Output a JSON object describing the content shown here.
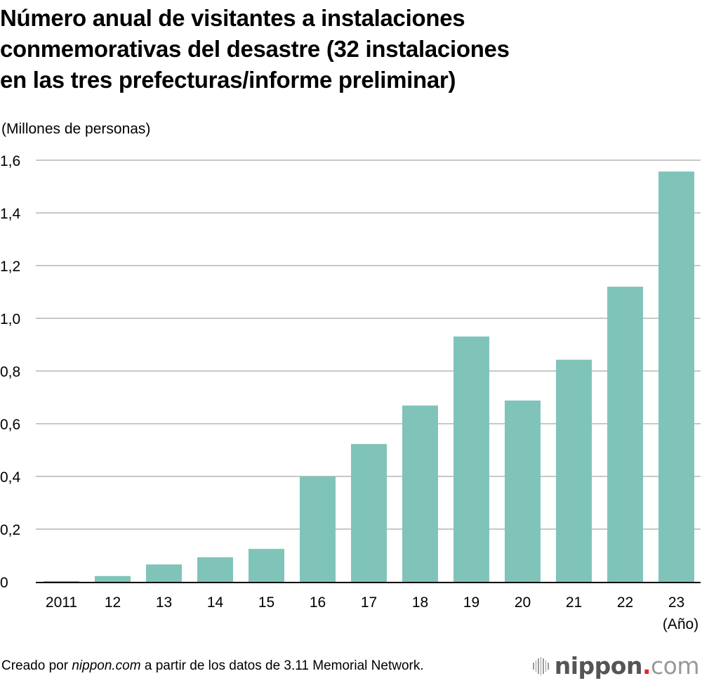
{
  "chart_data": {
    "type": "bar",
    "title_lines": [
      "Número anual de visitantes a instalaciones",
      "conmemorativas del desastre (32 instalaciones",
      "en las tres prefecturas/informe preliminar)"
    ],
    "ylabel": "(Millones de personas)",
    "xlabel": "(Año)",
    "categories": [
      "2011",
      "12",
      "13",
      "14",
      "15",
      "16",
      "17",
      "18",
      "19",
      "20",
      "21",
      "22",
      "23"
    ],
    "values": [
      0.003,
      0.022,
      0.066,
      0.093,
      0.125,
      0.4,
      0.523,
      0.669,
      0.931,
      0.688,
      0.843,
      1.12,
      1.557
    ],
    "ylim": [
      0,
      1.6
    ],
    "yticks": [
      0,
      0.2,
      0.4,
      0.6,
      0.8,
      1.0,
      1.2,
      1.4,
      1.6
    ],
    "ytick_labels": [
      "0",
      "0,2",
      "0,4",
      "0,6",
      "0,8",
      "1,0",
      "1,2",
      "1,4",
      "1,6"
    ],
    "grid": true,
    "bar_color": "#80c4b9",
    "grid_color": "#c8c8c8",
    "axis_color": "#000000"
  },
  "footer": {
    "prefix": "Creado por ",
    "site": "nippon.com",
    "suffix": " a partir de los datos de 3.11 Memorial Network."
  },
  "logo": {
    "name": "nippon",
    "dot": ".",
    "tld": "com",
    "accent_color": "#e8202a"
  }
}
